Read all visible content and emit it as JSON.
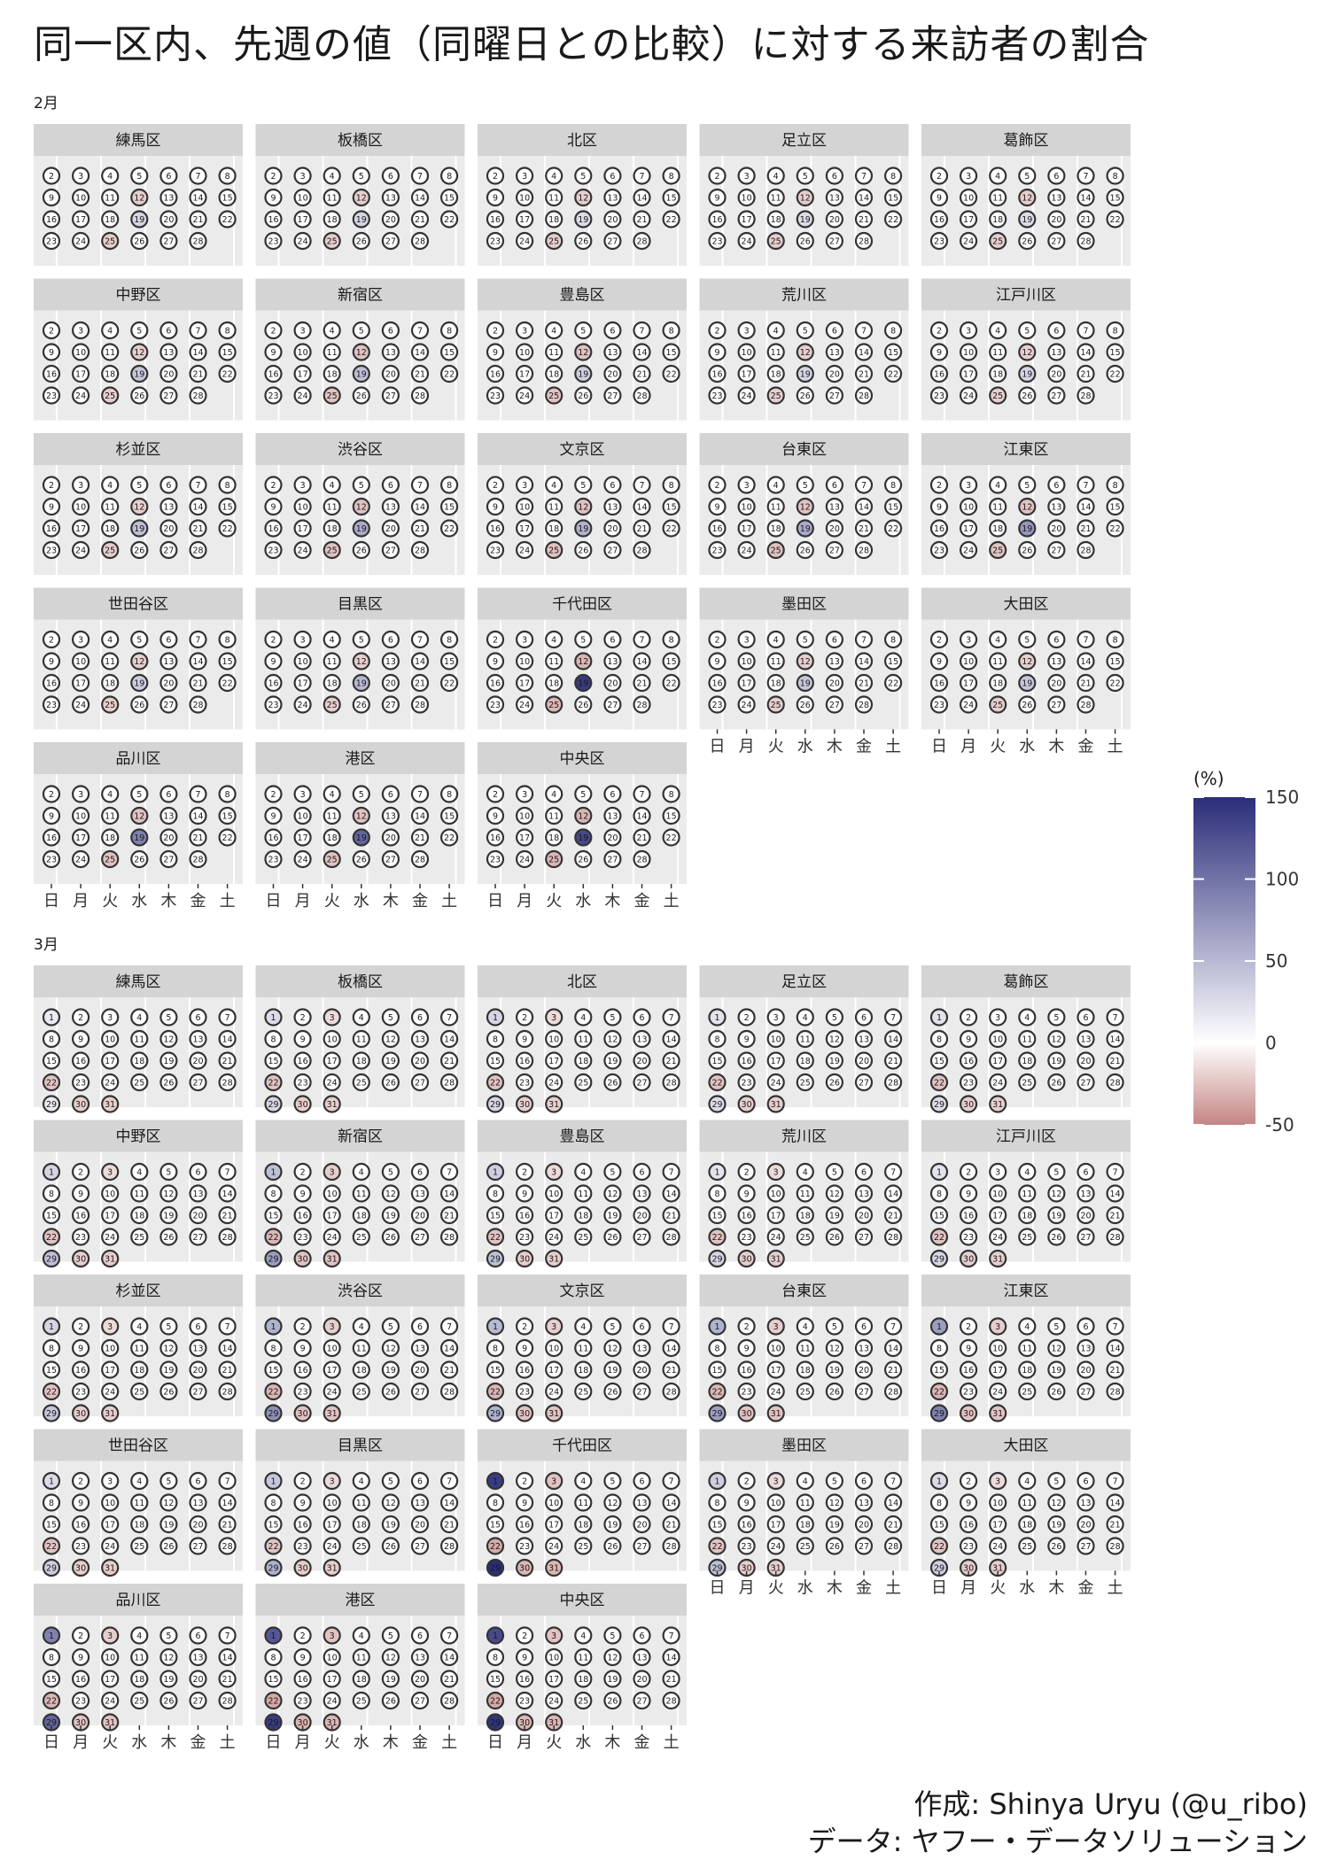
{
  "title": "同一区内、先週の値（同曜日との比較）に対する来訪者の割合",
  "caption": {
    "author": "作成: Shinya Uryu (@u_ribo)",
    "source": "データ: ヤフー・データソリューション"
  },
  "legend": {
    "title": "(%)",
    "ticks": [
      "150",
      "100",
      "50",
      "0",
      "-50"
    ],
    "colors": {
      "high": "#2b2d7a",
      "mid": "#ffffff",
      "low": "#c48584"
    }
  },
  "weekday_labels": [
    "日",
    "月",
    "火",
    "水",
    "木",
    "金",
    "土"
  ],
  "chart_data": {
    "type": "heatmap",
    "layout": "calendar facets by ward, one block per month",
    "wards": [
      "練馬区",
      "板橋区",
      "北区",
      "足立区",
      "葛飾区",
      "中野区",
      "新宿区",
      "豊島区",
      "荒川区",
      "江戸川区",
      "杉並区",
      "渋谷区",
      "文京区",
      "台東区",
      "江東区",
      "世田谷区",
      "目黒区",
      "千代田区",
      "墨田区",
      "大田区",
      "品川区",
      "港区",
      "中央区"
    ],
    "color_scale": {
      "min": -50,
      "max": 150,
      "midpoint": 0
    },
    "months": [
      {
        "label": "2月",
        "first_day": 2,
        "last_day": 28,
        "first_weekday": 0,
        "highlights": {
          "練馬区": {
            "12": -20,
            "19": 30,
            "25": -20
          },
          "板橋区": {
            "12": -20,
            "19": 30,
            "25": -20
          },
          "北区": {
            "12": -20,
            "19": 25,
            "25": -20
          },
          "足立区": {
            "12": -20,
            "19": 25,
            "25": -20
          },
          "葛飾区": {
            "12": -20,
            "19": 25,
            "25": -20
          },
          "中野区": {
            "12": -20,
            "19": 40,
            "25": -20
          },
          "新宿区": {
            "12": -25,
            "19": 45,
            "25": -25
          },
          "豊島区": {
            "12": -25,
            "19": 35,
            "25": -25
          },
          "荒川区": {
            "12": -20,
            "19": 30,
            "25": -20
          },
          "江戸川区": {
            "12": -20,
            "19": 30,
            "25": -20
          },
          "杉並区": {
            "12": -20,
            "19": 45,
            "25": -20
          },
          "渋谷区": {
            "12": -25,
            "19": 60,
            "25": -25
          },
          "文京区": {
            "12": -25,
            "19": 55,
            "25": -25
          },
          "台東区": {
            "12": -25,
            "19": 60,
            "25": -25
          },
          "江東区": {
            "12": -25,
            "19": 75,
            "25": -25
          },
          "世田谷区": {
            "12": -20,
            "19": 35,
            "25": -20
          },
          "目黒区": {
            "12": -20,
            "19": 50,
            "25": -20
          },
          "千代田区": {
            "12": -30,
            "19": 140,
            "25": -30
          },
          "墨田区": {
            "12": -20,
            "19": 40,
            "25": -20
          },
          "大田区": {
            "12": -20,
            "19": 40,
            "25": -20
          },
          "品川区": {
            "12": -25,
            "19": 90,
            "25": -25
          },
          "港区": {
            "12": -25,
            "19": 110,
            "25": -25
          },
          "中央区": {
            "12": -30,
            "19": 130,
            "25": -30
          }
        }
      },
      {
        "label": "3月",
        "first_day": 1,
        "last_day": 31,
        "first_weekday": 0,
        "highlights": {
          "練馬区": {
            "1": 15,
            "22": -25,
            "29": 15,
            "30": -20,
            "31": -20
          },
          "板橋区": {
            "1": 25,
            "3": -15,
            "22": -25,
            "29": 30,
            "30": -20,
            "31": -20
          },
          "北区": {
            "1": 30,
            "3": -15,
            "22": -25,
            "29": 30,
            "30": -20,
            "31": -20
          },
          "足立区": {
            "1": 20,
            "22": -25,
            "29": 25,
            "30": -20,
            "31": -20
          },
          "葛飾区": {
            "1": 20,
            "22": -25,
            "29": 25,
            "30": -20,
            "31": -20
          },
          "中野区": {
            "1": 30,
            "3": -15,
            "22": -25,
            "29": 45,
            "30": -20,
            "31": -20
          },
          "新宿区": {
            "1": 45,
            "3": -20,
            "22": -30,
            "29": 70,
            "30": -25,
            "31": -25
          },
          "豊島区": {
            "1": 35,
            "3": -15,
            "22": -25,
            "29": 45,
            "30": -20,
            "31": -20
          },
          "荒川区": {
            "1": 20,
            "3": -15,
            "22": -25,
            "29": 30,
            "30": -20,
            "31": -20
          },
          "江戸川区": {
            "1": 20,
            "22": -25,
            "29": 30,
            "30": -20,
            "31": -20
          },
          "杉並区": {
            "1": 30,
            "3": -15,
            "22": -25,
            "29": 40,
            "30": -20,
            "31": -20
          },
          "渋谷区": {
            "1": 55,
            "3": -20,
            "22": -30,
            "29": 80,
            "30": -25,
            "31": -25
          },
          "文京区": {
            "1": 50,
            "3": -20,
            "22": -30,
            "29": 55,
            "30": -25,
            "31": -25
          },
          "台東区": {
            "1": 55,
            "3": -20,
            "22": -30,
            "29": 70,
            "30": -25,
            "31": -25
          },
          "江東区": {
            "1": 70,
            "3": -20,
            "22": -30,
            "29": 90,
            "30": -25,
            "31": -25
          },
          "世田谷区": {
            "1": 25,
            "22": -25,
            "29": 35,
            "30": -20,
            "31": -20
          },
          "目黒区": {
            "1": 40,
            "3": -15,
            "22": -25,
            "29": 55,
            "30": -20,
            "31": -20
          },
          "千代田区": {
            "1": 140,
            "3": -25,
            "22": -35,
            "29": 150,
            "30": -30,
            "31": -30
          },
          "墨田区": {
            "1": 35,
            "3": -15,
            "22": -25,
            "29": 45,
            "30": -20,
            "31": -20
          },
          "大田区": {
            "1": 25,
            "3": -15,
            "22": -25,
            "29": 35,
            "30": -20,
            "31": -20
          },
          "品川区": {
            "1": 90,
            "3": -20,
            "22": -30,
            "29": 110,
            "30": -25,
            "31": -25
          },
          "港区": {
            "1": 120,
            "3": -25,
            "22": -35,
            "29": 140,
            "30": -30,
            "31": -30
          },
          "中央区": {
            "1": 130,
            "3": -25,
            "22": -35,
            "29": 145,
            "30": -30,
            "31": -30
          }
        }
      }
    ]
  }
}
